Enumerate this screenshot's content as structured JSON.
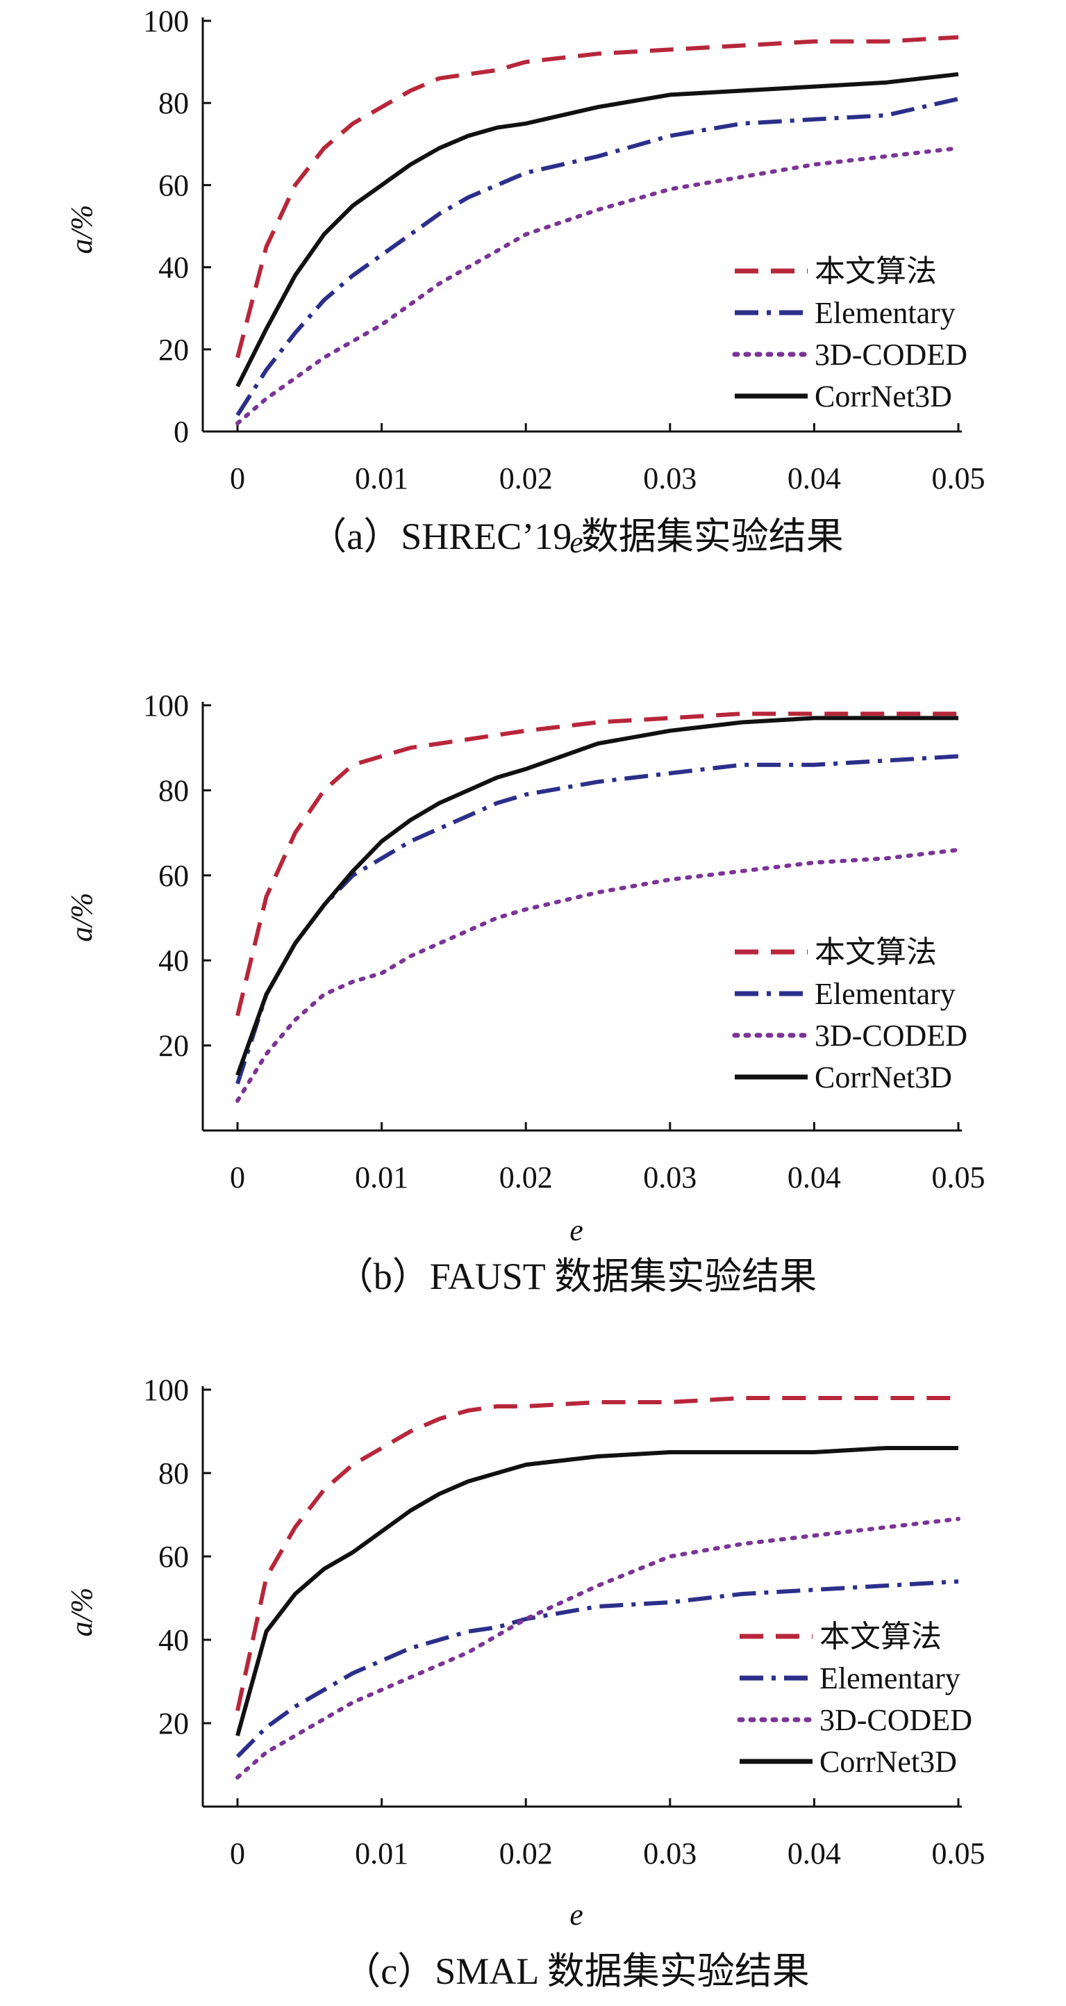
{
  "chart_data": [
    {
      "type": "line",
      "caption": "（a）SHREC’19 数据集实验结果",
      "xlabel": "e",
      "ylabel": "a/%",
      "xlim": [
        0,
        0.05
      ],
      "ylim": [
        0,
        100
      ],
      "x_ticks": [
        "0",
        "0.01",
        "0.02",
        "0.03",
        "0.04",
        "0.05"
      ],
      "y_ticks": [
        "0",
        "20",
        "40",
        "60",
        "80",
        "100"
      ],
      "grid": false,
      "legend_position": "bottom-right",
      "series": [
        {
          "name": "本文算法",
          "color": "#b8263a",
          "dash": "dashed",
          "x": [
            0,
            0.002,
            0.004,
            0.006,
            0.008,
            0.01,
            0.012,
            0.014,
            0.016,
            0.018,
            0.02,
            0.025,
            0.03,
            0.035,
            0.04,
            0.045,
            0.05
          ],
          "y": [
            18,
            45,
            60,
            69,
            75,
            79,
            83,
            86,
            87,
            88,
            90,
            92,
            93,
            94,
            95,
            95,
            96
          ]
        },
        {
          "name": "Elementary",
          "color": "#2b2f8a",
          "dash": "dashdot",
          "x": [
            0,
            0.002,
            0.004,
            0.006,
            0.008,
            0.01,
            0.012,
            0.014,
            0.016,
            0.018,
            0.02,
            0.025,
            0.03,
            0.035,
            0.04,
            0.045,
            0.05
          ],
          "y": [
            4,
            15,
            24,
            32,
            38,
            43,
            48,
            53,
            57,
            60,
            63,
            67,
            72,
            75,
            76,
            77,
            81
          ]
        },
        {
          "name": "3D-CODED",
          "color": "#7a3496",
          "dash": "dotted",
          "x": [
            0,
            0.002,
            0.004,
            0.006,
            0.008,
            0.01,
            0.012,
            0.014,
            0.016,
            0.018,
            0.02,
            0.025,
            0.03,
            0.035,
            0.04,
            0.045,
            0.05
          ],
          "y": [
            2,
            8,
            13,
            18,
            22,
            26,
            31,
            36,
            40,
            44,
            48,
            54,
            59,
            62,
            65,
            67,
            69
          ]
        },
        {
          "name": "CorrNet3D",
          "color": "#111111",
          "dash": "solid",
          "x": [
            0,
            0.002,
            0.004,
            0.006,
            0.008,
            0.01,
            0.012,
            0.014,
            0.016,
            0.018,
            0.02,
            0.025,
            0.03,
            0.035,
            0.04,
            0.045,
            0.05
          ],
          "y": [
            11,
            25,
            38,
            48,
            55,
            60,
            65,
            69,
            72,
            74,
            75,
            79,
            82,
            83,
            84,
            85,
            87
          ]
        }
      ]
    },
    {
      "type": "line",
      "caption": "（b）FAUST 数据集实验结果",
      "xlabel": "e",
      "ylabel": "a/%",
      "xlim": [
        0,
        0.05
      ],
      "ylim": [
        0,
        100
      ],
      "x_ticks": [
        "0",
        "0.01",
        "0.02",
        "0.03",
        "0.04",
        "0.05"
      ],
      "y_ticks": [
        "20",
        "40",
        "60",
        "80",
        "100"
      ],
      "grid": false,
      "legend_position": "bottom-right",
      "series": [
        {
          "name": "本文算法",
          "color": "#b8263a",
          "dash": "dashed",
          "x": [
            0,
            0.002,
            0.004,
            0.006,
            0.008,
            0.01,
            0.012,
            0.014,
            0.016,
            0.018,
            0.02,
            0.025,
            0.03,
            0.035,
            0.04,
            0.045,
            0.05
          ],
          "y": [
            27,
            55,
            70,
            80,
            86,
            88,
            90,
            91,
            92,
            93,
            94,
            96,
            97,
            98,
            98,
            98,
            98
          ]
        },
        {
          "name": "Elementary",
          "color": "#2b2f8a",
          "dash": "dashdot",
          "x": [
            0,
            0.002,
            0.004,
            0.006,
            0.008,
            0.01,
            0.012,
            0.014,
            0.016,
            0.018,
            0.02,
            0.025,
            0.03,
            0.035,
            0.04,
            0.045,
            0.05
          ],
          "y": [
            11,
            32,
            44,
            53,
            60,
            64,
            68,
            71,
            74,
            77,
            79,
            82,
            84,
            86,
            86,
            87,
            88
          ]
        },
        {
          "name": "3D-CODED",
          "color": "#7a3496",
          "dash": "dotted",
          "x": [
            0,
            0.002,
            0.004,
            0.006,
            0.008,
            0.01,
            0.012,
            0.014,
            0.016,
            0.018,
            0.02,
            0.025,
            0.03,
            0.035,
            0.04,
            0.045,
            0.05
          ],
          "y": [
            7,
            18,
            26,
            32,
            35,
            37,
            41,
            44,
            47,
            50,
            52,
            56,
            59,
            61,
            63,
            64,
            66
          ]
        },
        {
          "name": "CorrNet3D",
          "color": "#111111",
          "dash": "solid",
          "x": [
            0,
            0.002,
            0.004,
            0.006,
            0.008,
            0.01,
            0.012,
            0.014,
            0.016,
            0.018,
            0.02,
            0.025,
            0.03,
            0.035,
            0.04,
            0.045,
            0.05
          ],
          "y": [
            13,
            32,
            44,
            53,
            61,
            68,
            73,
            77,
            80,
            83,
            85,
            91,
            94,
            96,
            97,
            97,
            97
          ]
        }
      ]
    },
    {
      "type": "line",
      "caption": "（c）SMAL 数据集实验结果",
      "xlabel": "e",
      "ylabel": "a/%",
      "xlim": [
        0,
        0.05
      ],
      "ylim": [
        0,
        100
      ],
      "x_ticks": [
        "0",
        "0.01",
        "0.02",
        "0.03",
        "0.04",
        "0.05"
      ],
      "y_ticks": [
        "20",
        "40",
        "60",
        "80",
        "100"
      ],
      "grid": false,
      "legend_position": "bottom-right",
      "series": [
        {
          "name": "本文算法",
          "color": "#b8263a",
          "dash": "dashed",
          "x": [
            0,
            0.002,
            0.004,
            0.006,
            0.008,
            0.01,
            0.012,
            0.014,
            0.016,
            0.018,
            0.02,
            0.025,
            0.03,
            0.035,
            0.04,
            0.045,
            0.05
          ],
          "y": [
            23,
            55,
            67,
            76,
            82,
            86,
            90,
            93,
            95,
            96,
            96,
            97,
            97,
            98,
            98,
            98,
            98
          ]
        },
        {
          "name": "Elementary",
          "color": "#2b2f8a",
          "dash": "dashdot",
          "x": [
            0,
            0.002,
            0.004,
            0.006,
            0.008,
            0.01,
            0.012,
            0.014,
            0.016,
            0.018,
            0.02,
            0.025,
            0.03,
            0.035,
            0.04,
            0.045,
            0.05
          ],
          "y": [
            12,
            19,
            24,
            28,
            32,
            35,
            38,
            40,
            42,
            43,
            45,
            48,
            49,
            51,
            52,
            53,
            54
          ]
        },
        {
          "name": "3D-CODED",
          "color": "#7a3496",
          "dash": "dotted",
          "x": [
            0,
            0.002,
            0.004,
            0.006,
            0.008,
            0.01,
            0.012,
            0.014,
            0.016,
            0.018,
            0.02,
            0.025,
            0.03,
            0.035,
            0.04,
            0.045,
            0.05
          ],
          "y": [
            7,
            13,
            17,
            21,
            25,
            28,
            31,
            34,
            37,
            41,
            45,
            53,
            60,
            63,
            65,
            67,
            69
          ]
        },
        {
          "name": "CorrNet3D",
          "color": "#111111",
          "dash": "solid",
          "x": [
            0,
            0.002,
            0.004,
            0.006,
            0.008,
            0.01,
            0.012,
            0.014,
            0.016,
            0.018,
            0.02,
            0.025,
            0.03,
            0.035,
            0.04,
            0.045,
            0.05
          ],
          "y": [
            17,
            42,
            51,
            57,
            61,
            66,
            71,
            75,
            78,
            80,
            82,
            84,
            85,
            85,
            85,
            86,
            86
          ]
        }
      ]
    }
  ]
}
